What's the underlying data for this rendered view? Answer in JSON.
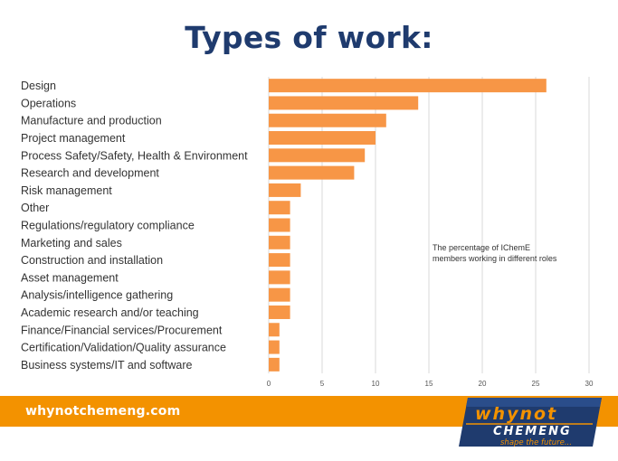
{
  "page": {
    "title": "Types of work:"
  },
  "footer": {
    "url": "whynotchemeng.com"
  },
  "logo": {
    "line1": "whynot",
    "line2": "CHEMENG",
    "tagline": "shape the future..."
  },
  "colors": {
    "bar": "#f79646",
    "title": "#1f3b6e",
    "footer": "#f39200",
    "logo_blue": "#1f3b6e"
  },
  "chart_data": {
    "type": "bar",
    "orientation": "horizontal",
    "title": "",
    "xlabel": "",
    "ylabel": "",
    "xlim": [
      0,
      30
    ],
    "xticks": [
      0,
      5,
      10,
      15,
      20,
      25,
      30
    ],
    "grid": true,
    "categories": [
      "Design",
      "Operations",
      "Manufacture and production",
      "Project management",
      "Process Safety/Safety, Health & Environment",
      "Research and development",
      "Risk management",
      "Other",
      "Regulations/regulatory compliance",
      "Marketing and sales",
      "Construction and installation",
      "Asset management",
      "Analysis/intelligence gathering",
      "Academic research and/or teaching",
      "Finance/Financial services/Procurement",
      "Certification/Validation/Quality assurance",
      "Business systems/IT and software"
    ],
    "values": [
      26,
      14,
      11,
      10,
      9,
      8,
      3,
      2,
      2,
      2,
      2,
      2,
      2,
      2,
      1,
      1,
      1
    ],
    "annotation": "The percentage of IChemE members working in different roles"
  }
}
